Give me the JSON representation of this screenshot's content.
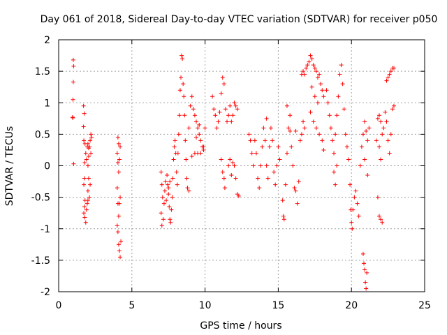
{
  "chart_data": {
    "type": "scatter",
    "title": "Day 061 of 2018, Sidereal Day-to-day VTEC variation (SDTVAR) for receiver p050",
    "xlabel": "GPS time / hours",
    "ylabel": "SDTVAR / TECUs",
    "xlim": [
      0,
      25
    ],
    "ylim": [
      -2,
      2
    ],
    "xticks": [
      0,
      5,
      10,
      15,
      20,
      25
    ],
    "yticks": [
      -2,
      -1.5,
      -1,
      -0.5,
      0,
      0.5,
      1,
      1.5,
      2
    ],
    "xtick_labels": [
      "0",
      "5",
      "10",
      "15",
      "20",
      "25"
    ],
    "ytick_labels": [
      "-2",
      "-1.5",
      "-1",
      "-0.5",
      "0",
      "0.5",
      "1",
      "1.5",
      "2"
    ],
    "grid": true,
    "marker": "+",
    "color": "#ff0000",
    "series": [
      {
        "name": "SDTVAR",
        "points": [
          [
            1.0,
            1.68
          ],
          [
            1.02,
            1.58
          ],
          [
            1.0,
            1.33
          ],
          [
            0.98,
            1.05
          ],
          [
            0.95,
            0.77
          ],
          [
            0.97,
            0.76
          ],
          [
            1.02,
            0.03
          ],
          [
            1.7,
            0.95
          ],
          [
            1.75,
            0.83
          ],
          [
            1.7,
            0.62
          ],
          [
            1.72,
            0.4
          ],
          [
            1.8,
            0.35
          ],
          [
            1.85,
            0.2
          ],
          [
            1.78,
            0.05
          ],
          [
            1.75,
            -0.2
          ],
          [
            1.72,
            -0.3
          ],
          [
            1.8,
            -0.55
          ],
          [
            1.75,
            -0.65
          ],
          [
            1.72,
            -0.75
          ],
          [
            1.78,
            -0.82
          ],
          [
            1.85,
            -0.9
          ],
          [
            1.9,
            -0.7
          ],
          [
            1.95,
            -0.6
          ],
          [
            2.0,
            -0.4
          ],
          [
            2.05,
            -0.2
          ],
          [
            2.0,
            0.0
          ],
          [
            1.95,
            0.3
          ],
          [
            2.0,
            0.35
          ],
          [
            2.05,
            0.28
          ],
          [
            2.1,
            0.3
          ],
          [
            2.15,
            0.4
          ],
          [
            2.2,
            0.5
          ],
          [
            2.25,
            0.45
          ],
          [
            2.2,
            0.2
          ],
          [
            2.15,
            -0.3
          ],
          [
            2.1,
            -0.5
          ],
          [
            2.0,
            -0.55
          ],
          [
            1.9,
            0.1
          ],
          [
            2.05,
            0.15
          ],
          [
            4.05,
            0.45
          ],
          [
            4.1,
            0.35
          ],
          [
            4.0,
            0.2
          ],
          [
            4.05,
            0.05
          ],
          [
            4.1,
            -0.1
          ],
          [
            4.15,
            0.1
          ],
          [
            4.2,
            0.3
          ],
          [
            4.0,
            -0.35
          ],
          [
            4.05,
            -0.6
          ],
          [
            4.1,
            -0.8
          ],
          [
            4.0,
            -0.95
          ],
          [
            4.05,
            -1.05
          ],
          [
            4.1,
            -1.25
          ],
          [
            4.15,
            -1.35
          ],
          [
            4.2,
            -1.45
          ],
          [
            4.25,
            -1.2
          ],
          [
            4.15,
            -0.6
          ],
          [
            4.2,
            -0.5
          ],
          [
            7.0,
            -0.1
          ],
          [
            7.05,
            -0.3
          ],
          [
            7.1,
            -0.5
          ],
          [
            7.0,
            -0.75
          ],
          [
            7.05,
            -0.95
          ],
          [
            7.15,
            -0.85
          ],
          [
            7.2,
            -0.6
          ],
          [
            7.25,
            -0.4
          ],
          [
            7.3,
            -0.25
          ],
          [
            7.4,
            -0.15
          ],
          [
            7.45,
            -0.3
          ],
          [
            7.5,
            -0.45
          ],
          [
            7.55,
            -0.65
          ],
          [
            7.6,
            -0.85
          ],
          [
            7.65,
            -0.9
          ],
          [
            7.7,
            -0.7
          ],
          [
            7.75,
            -0.5
          ],
          [
            7.8,
            -0.2
          ],
          [
            7.85,
            0.1
          ],
          [
            7.9,
            0.3
          ],
          [
            7.95,
            0.4
          ],
          [
            8.0,
            0.2
          ],
          [
            8.05,
            -0.1
          ],
          [
            8.1,
            -0.3
          ],
          [
            8.15,
            0.2
          ],
          [
            8.2,
            0.5
          ],
          [
            8.25,
            0.8
          ],
          [
            8.3,
            1.2
          ],
          [
            8.35,
            1.4
          ],
          [
            8.4,
            1.75
          ],
          [
            8.45,
            1.7
          ],
          [
            8.5,
            1.3
          ],
          [
            8.55,
            1.1
          ],
          [
            8.6,
            0.8
          ],
          [
            8.65,
            0.4
          ],
          [
            8.7,
            0.1
          ],
          [
            8.75,
            -0.2
          ],
          [
            8.8,
            -0.35
          ],
          [
            8.9,
            -0.4
          ],
          [
            7.35,
            -0.55
          ],
          [
            7.5,
            -0.35
          ],
          [
            7.6,
            -0.25
          ],
          [
            8.9,
            0.6
          ],
          [
            9.0,
            0.95
          ],
          [
            9.1,
            1.1
          ],
          [
            9.2,
            0.9
          ],
          [
            9.3,
            0.8
          ],
          [
            9.4,
            0.7
          ],
          [
            9.5,
            0.6
          ],
          [
            9.6,
            0.5
          ],
          [
            9.7,
            0.4
          ],
          [
            9.8,
            0.3
          ],
          [
            9.9,
            0.25
          ],
          [
            10.0,
            0.6
          ],
          [
            9.1,
            0.15
          ],
          [
            9.3,
            0.2
          ],
          [
            9.5,
            0.2
          ],
          [
            9.7,
            0.2
          ],
          [
            9.9,
            0.3
          ],
          [
            9.4,
            0.45
          ],
          [
            9.6,
            0.65
          ],
          [
            10.5,
            1.1
          ],
          [
            10.6,
            0.9
          ],
          [
            10.7,
            0.8
          ],
          [
            10.8,
            0.6
          ],
          [
            10.9,
            0.7
          ],
          [
            11.0,
            0.85
          ],
          [
            11.1,
            1.15
          ],
          [
            11.2,
            1.4
          ],
          [
            11.3,
            1.3
          ],
          [
            11.4,
            0.9
          ],
          [
            11.5,
            0.7
          ],
          [
            11.6,
            0.8
          ],
          [
            11.7,
            0.95
          ],
          [
            11.8,
            0.7
          ],
          [
            11.9,
            0.8
          ],
          [
            12.0,
            1.0
          ],
          [
            12.1,
            0.95
          ],
          [
            12.2,
            0.9
          ],
          [
            11.1,
            0.1
          ],
          [
            11.2,
            -0.1
          ],
          [
            11.3,
            -0.2
          ],
          [
            11.35,
            -0.35
          ],
          [
            11.6,
            0.0
          ],
          [
            11.7,
            0.1
          ],
          [
            11.8,
            -0.15
          ],
          [
            11.9,
            0.05
          ],
          [
            12.0,
            0.0
          ],
          [
            12.1,
            -0.2
          ],
          [
            12.2,
            -0.45
          ],
          [
            12.3,
            -0.48
          ],
          [
            13.0,
            0.5
          ],
          [
            13.1,
            0.4
          ],
          [
            13.2,
            0.2
          ],
          [
            13.3,
            0.0
          ],
          [
            13.4,
            0.4
          ],
          [
            13.5,
            0.2
          ],
          [
            13.6,
            -0.2
          ],
          [
            13.7,
            -0.35
          ],
          [
            13.8,
            0.0
          ],
          [
            13.9,
            0.3
          ],
          [
            14.0,
            0.6
          ],
          [
            14.1,
            0.4
          ],
          [
            14.2,
            0.0
          ],
          [
            14.3,
            -0.2
          ],
          [
            14.4,
            0.3
          ],
          [
            14.5,
            0.6
          ],
          [
            14.6,
            0.4
          ],
          [
            14.7,
            -0.1
          ],
          [
            14.8,
            -0.3
          ],
          [
            14.9,
            0.0
          ],
          [
            15.0,
            0.3
          ],
          [
            14.2,
            0.75
          ],
          [
            15.1,
            0.1
          ],
          [
            15.3,
            -0.55
          ],
          [
            15.35,
            -0.8
          ],
          [
            15.4,
            -0.85
          ],
          [
            15.5,
            -0.3
          ],
          [
            15.6,
            0.2
          ],
          [
            15.7,
            0.6
          ],
          [
            15.8,
            0.55
          ],
          [
            15.9,
            0.3
          ],
          [
            16.0,
            0.0
          ],
          [
            16.1,
            -0.35
          ],
          [
            16.2,
            -0.4
          ],
          [
            16.3,
            -0.6
          ],
          [
            16.4,
            -0.25
          ],
          [
            16.5,
            0.4
          ],
          [
            16.6,
            0.5
          ],
          [
            16.7,
            0.7
          ],
          [
            16.8,
            0.6
          ],
          [
            15.8,
            0.8
          ],
          [
            15.6,
            0.95
          ],
          [
            16.2,
            0.55
          ],
          [
            16.6,
            1.45
          ],
          [
            16.7,
            1.5
          ],
          [
            16.8,
            1.45
          ],
          [
            16.9,
            1.55
          ],
          [
            17.0,
            1.6
          ],
          [
            17.1,
            1.65
          ],
          [
            17.2,
            1.75
          ],
          [
            17.3,
            1.7
          ],
          [
            17.4,
            1.6
          ],
          [
            17.5,
            1.55
          ],
          [
            17.6,
            1.5
          ],
          [
            17.7,
            1.4
          ],
          [
            17.8,
            1.45
          ],
          [
            17.9,
            1.3
          ],
          [
            18.0,
            1.2
          ],
          [
            18.1,
            1.1
          ],
          [
            17.3,
            1.25
          ],
          [
            17.5,
            1.1
          ],
          [
            17.7,
            1.0
          ],
          [
            17.2,
            0.85
          ],
          [
            17.4,
            0.7
          ],
          [
            17.6,
            0.6
          ],
          [
            17.8,
            0.5
          ],
          [
            18.0,
            0.4
          ],
          [
            18.1,
            0.25
          ],
          [
            18.3,
            1.2
          ],
          [
            18.4,
            1.0
          ],
          [
            18.5,
            0.8
          ],
          [
            18.6,
            0.6
          ],
          [
            18.7,
            0.4
          ],
          [
            18.8,
            0.2
          ],
          [
            18.9,
            0.5
          ],
          [
            19.0,
            0.8
          ],
          [
            19.1,
            1.1
          ],
          [
            19.2,
            1.45
          ],
          [
            19.3,
            1.6
          ],
          [
            19.4,
            1.3
          ],
          [
            19.5,
            0.9
          ],
          [
            19.6,
            0.5
          ],
          [
            19.7,
            0.3
          ],
          [
            18.8,
            -0.1
          ],
          [
            18.9,
            -0.3
          ],
          [
            19.0,
            0.0
          ],
          [
            19.8,
            0.1
          ],
          [
            19.9,
            -0.3
          ],
          [
            19.95,
            -0.7
          ],
          [
            20.0,
            -0.9
          ],
          [
            20.05,
            -1.0
          ],
          [
            20.1,
            -0.7
          ],
          [
            20.2,
            -0.5
          ],
          [
            20.3,
            -0.4
          ],
          [
            20.4,
            -0.6
          ],
          [
            20.5,
            -0.8
          ],
          [
            20.6,
            0.0
          ],
          [
            20.7,
            0.3
          ],
          [
            20.8,
            0.5
          ],
          [
            20.9,
            0.7
          ],
          [
            21.0,
            0.55
          ],
          [
            21.1,
            0.4
          ],
          [
            21.2,
            0.6
          ],
          [
            20.8,
            -1.4
          ],
          [
            20.85,
            -1.55
          ],
          [
            20.9,
            -1.65
          ],
          [
            20.95,
            -1.85
          ],
          [
            21.0,
            -1.95
          ],
          [
            21.05,
            -1.7
          ],
          [
            20.9,
            0.1
          ],
          [
            21.1,
            -0.15
          ],
          [
            21.7,
            0.4
          ],
          [
            21.8,
            0.75
          ],
          [
            21.9,
            0.8
          ],
          [
            22.0,
            0.7
          ],
          [
            22.1,
            0.5
          ],
          [
            22.2,
            0.6
          ],
          [
            22.3,
            0.85
          ],
          [
            21.8,
            -0.5
          ],
          [
            21.9,
            -0.8
          ],
          [
            22.0,
            -0.85
          ],
          [
            22.1,
            -0.9
          ],
          [
            21.9,
            0.3
          ],
          [
            22.0,
            0.1
          ],
          [
            22.4,
            0.7
          ],
          [
            22.5,
            0.4
          ],
          [
            22.6,
            0.2
          ],
          [
            22.7,
            0.5
          ],
          [
            22.8,
            0.9
          ],
          [
            22.9,
            0.95
          ],
          [
            22.4,
            1.35
          ],
          [
            22.5,
            1.4
          ],
          [
            22.6,
            1.45
          ],
          [
            22.7,
            1.5
          ],
          [
            22.8,
            1.55
          ],
          [
            22.9,
            1.55
          ]
        ]
      }
    ]
  }
}
